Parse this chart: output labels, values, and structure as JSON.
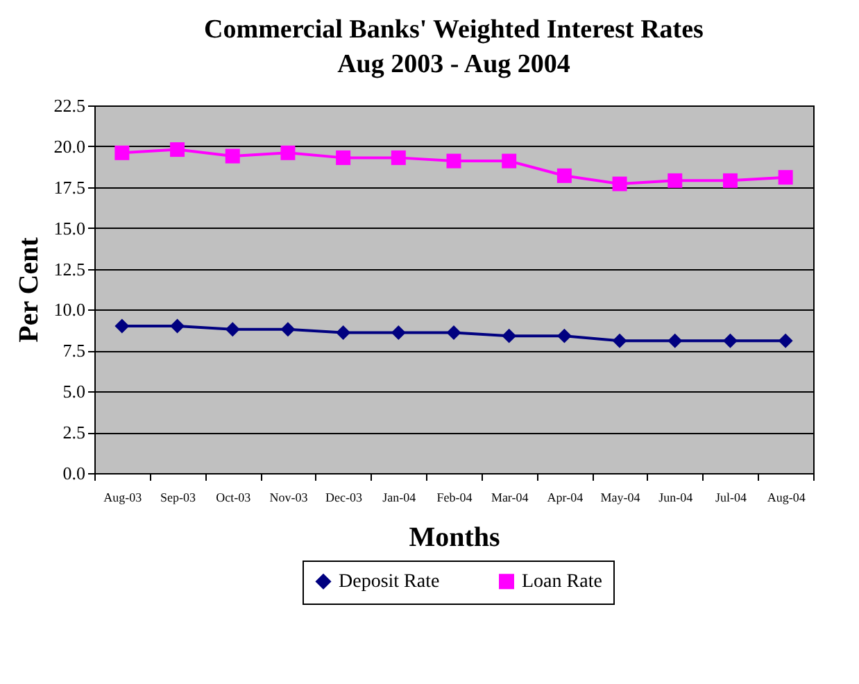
{
  "chart_data": {
    "type": "line",
    "title": "Commercial Banks' Weighted  Interest Rates",
    "subtitle": "Aug 2003 - Aug 2004",
    "xlabel": "Months",
    "ylabel": "Per Cent",
    "categories": [
      "Aug-03",
      "Sep-03",
      "Oct-03",
      "Nov-03",
      "Dec-03",
      "Jan-04",
      "Feb-04",
      "Mar-04",
      "Apr-04",
      "May-04",
      "Jun-04",
      "Jul-04",
      "Aug-04"
    ],
    "series": [
      {
        "name": "Deposit Rate",
        "color": "#000080",
        "marker": "diamond",
        "values": [
          9.0,
          9.0,
          8.8,
          8.8,
          8.6,
          8.6,
          8.6,
          8.4,
          8.4,
          8.1,
          8.1,
          8.1,
          8.1
        ]
      },
      {
        "name": "Loan Rate",
        "color": "#ff00ff",
        "marker": "square",
        "values": [
          19.6,
          19.8,
          19.4,
          19.6,
          19.3,
          19.3,
          19.1,
          19.1,
          18.2,
          17.7,
          17.9,
          17.9,
          18.1
        ]
      }
    ],
    "ylim": [
      0,
      22.5
    ],
    "yticks": [
      {
        "value": 0,
        "label": "0.0"
      },
      {
        "value": 2.5,
        "label": "2.5"
      },
      {
        "value": 5,
        "label": "5.0"
      },
      {
        "value": 7.5,
        "label": "7.5"
      },
      {
        "value": 10,
        "label": "10.0"
      },
      {
        "value": 12.5,
        "label": "12.5"
      },
      {
        "value": 15,
        "label": "15.0"
      },
      {
        "value": 17.5,
        "label": "17.5"
      },
      {
        "value": 20,
        "label": "20.0"
      },
      {
        "value": 22.5,
        "label": "22.5"
      }
    ],
    "grid": "y",
    "legend": "bottom"
  }
}
